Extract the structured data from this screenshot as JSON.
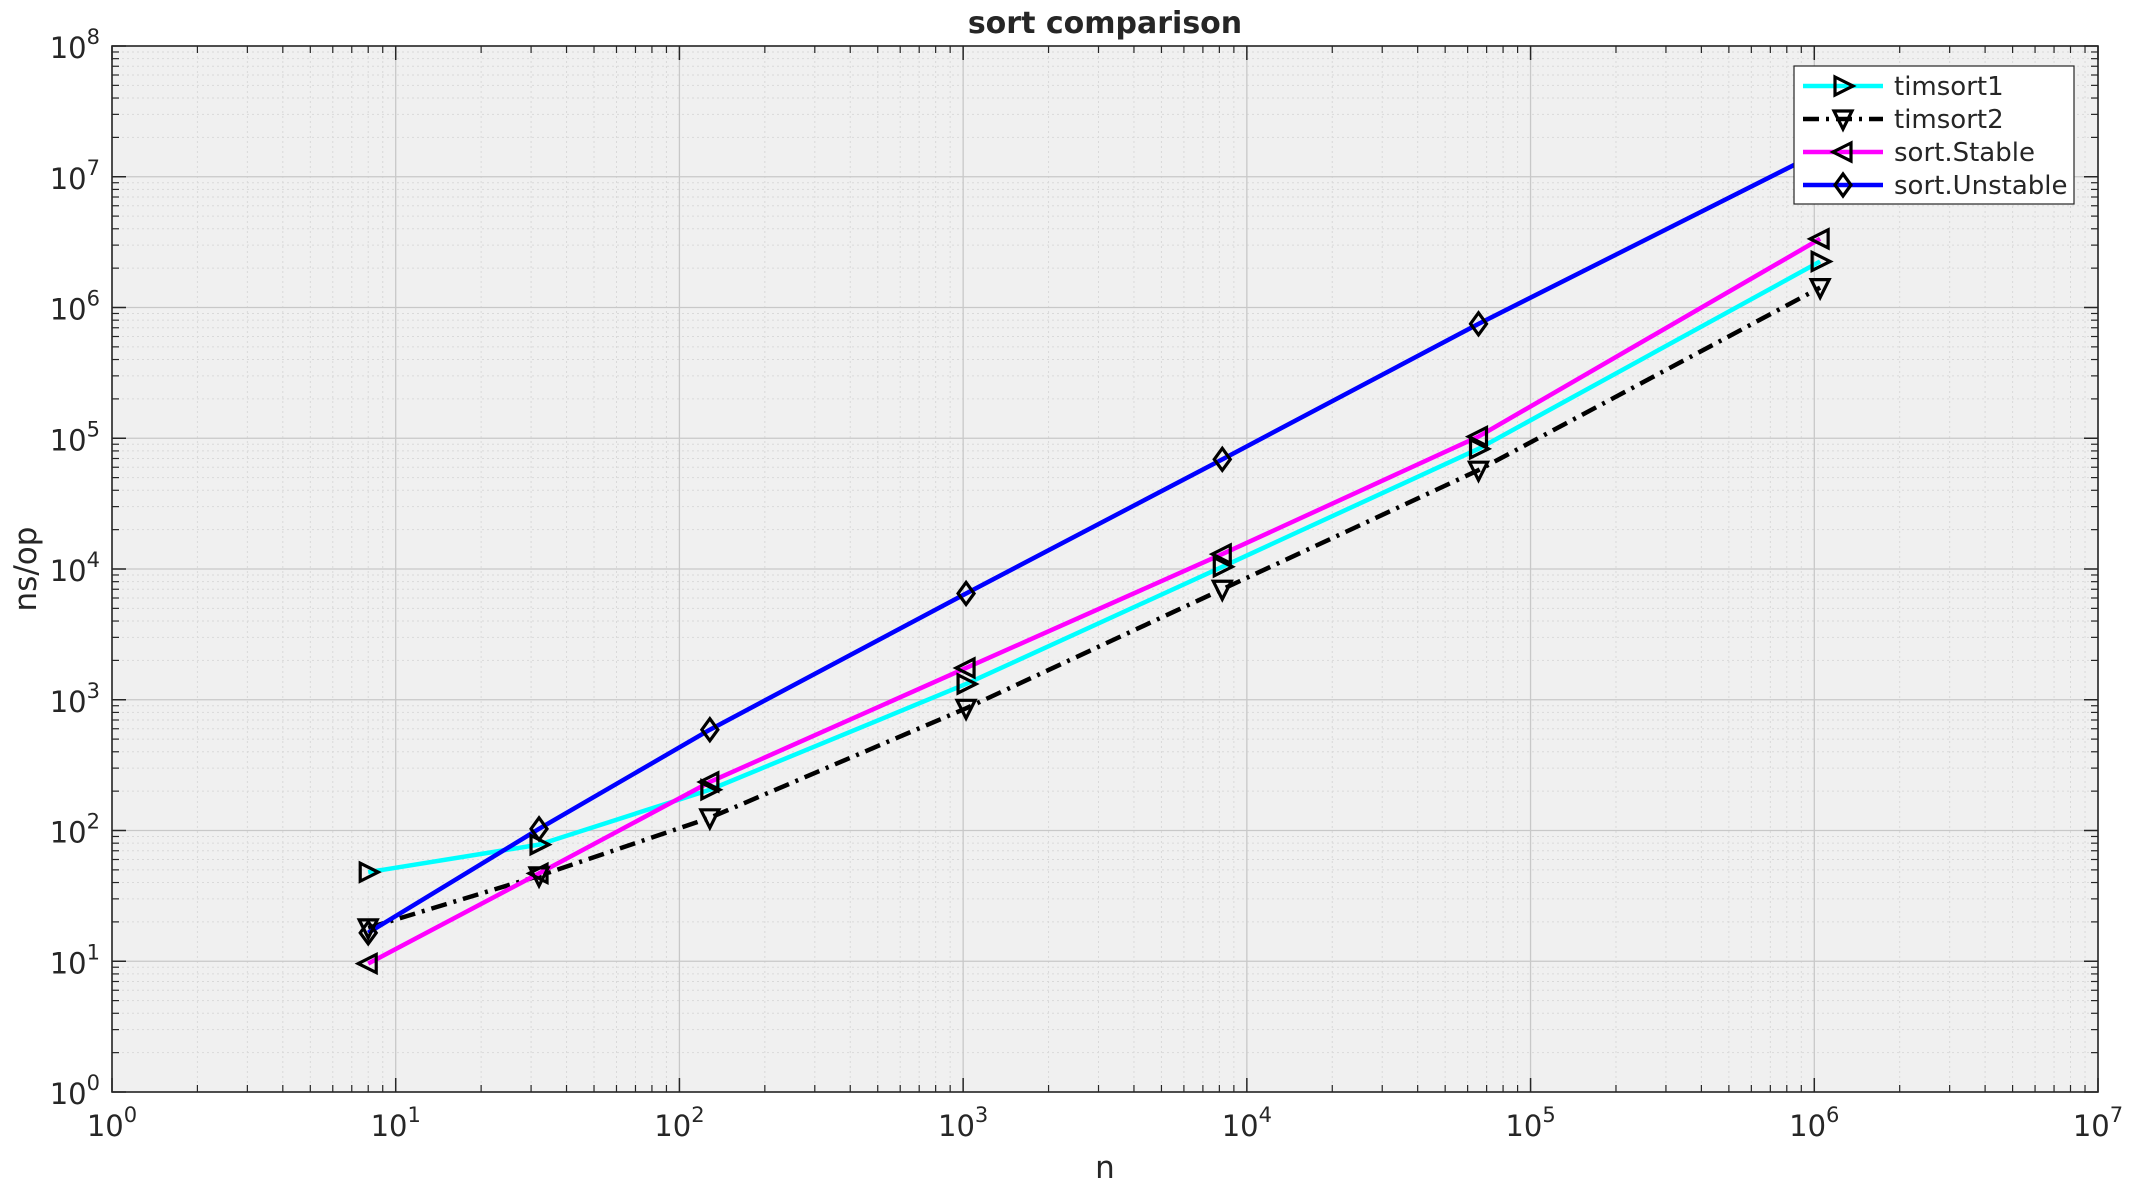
{
  "chart_data": {
    "type": "line",
    "title": "sort comparison",
    "xlabel": "n",
    "ylabel": "ns/op",
    "xscale": "log",
    "yscale": "log",
    "xlim": [
      1,
      10000000
    ],
    "ylim": [
      1,
      100000000
    ],
    "grid": "on (major and minor)",
    "legend_position": "top-right",
    "x_ticks": [
      {
        "base": "10",
        "exp": "0"
      },
      {
        "base": "10",
        "exp": "1"
      },
      {
        "base": "10",
        "exp": "2"
      },
      {
        "base": "10",
        "exp": "3"
      },
      {
        "base": "10",
        "exp": "4"
      },
      {
        "base": "10",
        "exp": "5"
      },
      {
        "base": "10",
        "exp": "6"
      },
      {
        "base": "10",
        "exp": "7"
      }
    ],
    "y_ticks": [
      {
        "base": "10",
        "exp": "0"
      },
      {
        "base": "10",
        "exp": "1"
      },
      {
        "base": "10",
        "exp": "2"
      },
      {
        "base": "10",
        "exp": "3"
      },
      {
        "base": "10",
        "exp": "4"
      },
      {
        "base": "10",
        "exp": "5"
      },
      {
        "base": "10",
        "exp": "6"
      },
      {
        "base": "10",
        "exp": "7"
      },
      {
        "base": "10",
        "exp": "8"
      }
    ],
    "x": [
      8,
      32,
      128,
      1024,
      8192,
      65536,
      1048576
    ],
    "series": [
      {
        "name": "timsort1",
        "color": "#00ffff",
        "line_style": "solid",
        "marker": "triangle-right",
        "values": [
          48,
          78,
          205,
          1320,
          10400,
          83000,
          2250000
        ]
      },
      {
        "name": "timsort2",
        "color": "#000000",
        "line_style": "dash-dot",
        "marker": "triangle-down",
        "values": [
          18,
          45,
          125,
          860,
          7000,
          57000,
          1420000
        ]
      },
      {
        "name": "sort.Stable",
        "color": "#ff00ff",
        "line_style": "solid",
        "marker": "triangle-left",
        "values": [
          9.6,
          47,
          235,
          1750,
          13000,
          103000,
          3350000
        ]
      },
      {
        "name": "sort.Unstable",
        "color": "#0000ff",
        "line_style": "solid",
        "marker": "diamond",
        "values": [
          16.5,
          103,
          590,
          6500,
          69000,
          750000,
          15500000
        ]
      }
    ]
  }
}
